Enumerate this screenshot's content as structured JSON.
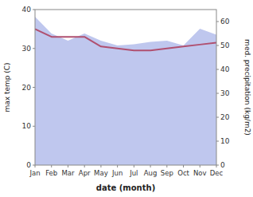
{
  "chart_data": {
    "type": "line",
    "xlabel": "date (month)",
    "ylabel": "max temp (C)",
    "y2label": "med. precipitation (kg/m2)",
    "categories": [
      "Jan",
      "Feb",
      "Mar",
      "Apr",
      "May",
      "Jun",
      "Jul",
      "Aug",
      "Sep",
      "Oct",
      "Nov",
      "Dec"
    ],
    "series": [
      {
        "type": "area",
        "axis": "y2",
        "color": "#aab4e8",
        "values": [
          62.0,
          55.0,
          52.0,
          55.0,
          52.0,
          50.0,
          50.5,
          51.5,
          52.0,
          50.0,
          57.0,
          54.5
        ]
      },
      {
        "type": "line",
        "color": "#b05070",
        "values": [
          35.0,
          33.0,
          33.0,
          33.0,
          30.5,
          30.0,
          29.5,
          29.5,
          30.0,
          30.5,
          31.0,
          31.5
        ]
      }
    ],
    "ylim": [
      0,
      40
    ],
    "yticks": [
      0,
      10,
      20,
      30,
      40
    ],
    "y2lim": [
      0,
      65
    ],
    "y2ticks": [
      0,
      10,
      20,
      30,
      40,
      50,
      60
    ],
    "grid": false
  }
}
